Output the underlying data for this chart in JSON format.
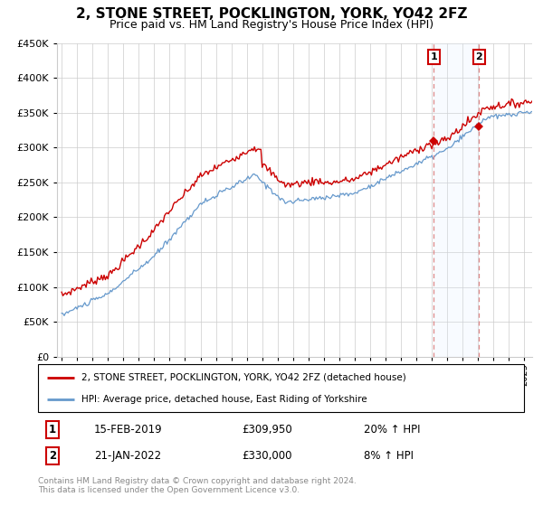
{
  "title": "2, STONE STREET, POCKLINGTON, YORK, YO42 2FZ",
  "subtitle": "Price paid vs. HM Land Registry's House Price Index (HPI)",
  "legend_line1": "2, STONE STREET, POCKLINGTON, YORK, YO42 2FZ (detached house)",
  "legend_line2": "HPI: Average price, detached house, East Riding of Yorkshire",
  "transaction1_date": "15-FEB-2019",
  "transaction1_price": "£309,950",
  "transaction1_hpi": "20% ↑ HPI",
  "transaction1_x": 2019.12,
  "transaction1_y": 309950,
  "transaction2_date": "21-JAN-2022",
  "transaction2_price": "£330,000",
  "transaction2_hpi": "8% ↑ HPI",
  "transaction2_x": 2022.05,
  "transaction2_y": 330000,
  "footer": "Contains HM Land Registry data © Crown copyright and database right 2024.\nThis data is licensed under the Open Government Licence v3.0.",
  "ylim": [
    0,
    450000
  ],
  "yticks": [
    0,
    50000,
    100000,
    150000,
    200000,
    250000,
    300000,
    350000,
    400000,
    450000
  ],
  "xlim_left": 1994.7,
  "xlim_right": 2025.5,
  "red_color": "#cc0000",
  "blue_color": "#6699cc",
  "dashed_color": "#dd8888",
  "shade_color": "#ddeeff",
  "grid_color": "#cccccc",
  "title_fontsize": 11,
  "subtitle_fontsize": 9,
  "label_fontsize": 8,
  "tick_fontsize": 7
}
